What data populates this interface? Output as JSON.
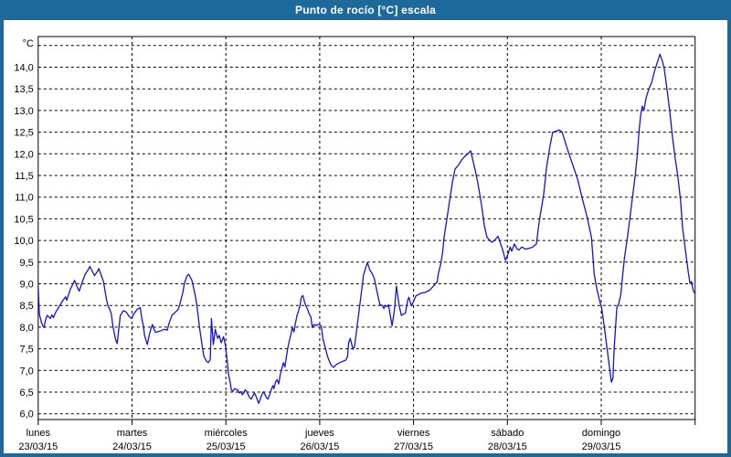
{
  "window": {
    "title": "Punto de rocío [°C] escala"
  },
  "colors": {
    "title_bar": "#1e699b",
    "frame": "#1e699b",
    "line": "#1414cc",
    "grid": "#000000",
    "background": "#ffffff",
    "text": "#000000"
  },
  "chart_data": {
    "type": "line",
    "title": "Punto de rocío [°C] escala",
    "ylabel": "°C",
    "unit_label": "°C",
    "grid": "dashed",
    "legend": "none",
    "y_axis": {
      "min": 6.0,
      "max": 14.5,
      "tick_step": 0.5,
      "labeled_max": 14.0,
      "decimal_separator": ","
    },
    "x_axis": {
      "hours_total": 168,
      "days": [
        {
          "name": "lunes",
          "date": "23/03/15"
        },
        {
          "name": "martes",
          "date": "24/03/15"
        },
        {
          "name": "miércoles",
          "date": "25/03/15"
        },
        {
          "name": "jueves",
          "date": "26/03/15"
        },
        {
          "name": "viernes",
          "date": "27/03/15"
        },
        {
          "name": "sábado",
          "date": "28/03/15"
        },
        {
          "name": "domingo",
          "date": "29/03/15"
        }
      ]
    },
    "series_name": "Punto de rocío",
    "points": [
      [
        0,
        8.92
      ],
      [
        0.3,
        8.3
      ],
      [
        0.8,
        8.12
      ],
      [
        1.2,
        8.03
      ],
      [
        1.5,
        7.99
      ],
      [
        1.9,
        8.17
      ],
      [
        2.3,
        8.27
      ],
      [
        2.7,
        8.24
      ],
      [
        3.1,
        8.2
      ],
      [
        3.5,
        8.28
      ],
      [
        3.9,
        8.22
      ],
      [
        4.5,
        8.35
      ],
      [
        5.4,
        8.48
      ],
      [
        6.2,
        8.6
      ],
      [
        7.0,
        8.7
      ],
      [
        7.3,
        8.62
      ],
      [
        8.2,
        8.87
      ],
      [
        8.9,
        9.0
      ],
      [
        9.3,
        9.08
      ],
      [
        10.1,
        8.9
      ],
      [
        10.5,
        8.83
      ],
      [
        11.3,
        9.05
      ],
      [
        12.0,
        9.22
      ],
      [
        12.8,
        9.33
      ],
      [
        13.2,
        9.4
      ],
      [
        14.0,
        9.26
      ],
      [
        14.4,
        9.19
      ],
      [
        15.2,
        9.29
      ],
      [
        15.5,
        9.35
      ],
      [
        16.3,
        9.15
      ],
      [
        16.7,
        9.05
      ],
      [
        17.1,
        8.83
      ],
      [
        17.5,
        8.62
      ],
      [
        17.9,
        8.48
      ],
      [
        18.3,
        8.41
      ],
      [
        18.7,
        8.31
      ],
      [
        19.1,
        8.03
      ],
      [
        19.8,
        7.71
      ],
      [
        20.2,
        7.62
      ],
      [
        21.0,
        8.27
      ],
      [
        21.8,
        8.38
      ],
      [
        22.5,
        8.35
      ],
      [
        23.3,
        8.24
      ],
      [
        23.9,
        8.2
      ],
      [
        24.5,
        8.31
      ],
      [
        25.3,
        8.41
      ],
      [
        26.1,
        8.45
      ],
      [
        26.5,
        8.2
      ],
      [
        26.9,
        8.03
      ],
      [
        27.2,
        7.81
      ],
      [
        27.9,
        7.6
      ],
      [
        28.4,
        7.81
      ],
      [
        28.8,
        7.95
      ],
      [
        29.2,
        8.06
      ],
      [
        29.6,
        7.95
      ],
      [
        30.0,
        7.88
      ],
      [
        31.1,
        7.91
      ],
      [
        32.3,
        7.95
      ],
      [
        33.0,
        7.93
      ],
      [
        33.5,
        8.1
      ],
      [
        34.2,
        8.27
      ],
      [
        35.0,
        8.34
      ],
      [
        35.8,
        8.41
      ],
      [
        36.2,
        8.52
      ],
      [
        36.6,
        8.66
      ],
      [
        37.0,
        8.8
      ],
      [
        37.4,
        9.01
      ],
      [
        38.1,
        9.19
      ],
      [
        38.5,
        9.22
      ],
      [
        39.3,
        9.08
      ],
      [
        40.1,
        8.76
      ],
      [
        40.5,
        8.55
      ],
      [
        40.9,
        8.27
      ],
      [
        41.2,
        8.03
      ],
      [
        41.6,
        7.78
      ],
      [
        42.0,
        7.53
      ],
      [
        42.4,
        7.32
      ],
      [
        43.0,
        7.22
      ],
      [
        43.5,
        7.18
      ],
      [
        44.0,
        7.25
      ],
      [
        44.3,
        8.2
      ],
      [
        44.8,
        7.6
      ],
      [
        45.3,
        7.95
      ],
      [
        45.9,
        7.74
      ],
      [
        46.3,
        7.81
      ],
      [
        46.8,
        7.64
      ],
      [
        47.4,
        7.78
      ],
      [
        47.9,
        7.57
      ],
      [
        48.3,
        7.25
      ],
      [
        48.7,
        6.9
      ],
      [
        49.1,
        6.73
      ],
      [
        49.4,
        6.55
      ],
      [
        49.8,
        6.52
      ],
      [
        50.2,
        6.58
      ],
      [
        51.0,
        6.55
      ],
      [
        51.4,
        6.48
      ],
      [
        51.8,
        6.51
      ],
      [
        52.2,
        6.44
      ],
      [
        52.6,
        6.48
      ],
      [
        52.9,
        6.55
      ],
      [
        53.3,
        6.52
      ],
      [
        53.7,
        6.44
      ],
      [
        54.1,
        6.37
      ],
      [
        54.5,
        6.34
      ],
      [
        54.9,
        6.41
      ],
      [
        55.3,
        6.48
      ],
      [
        55.7,
        6.41
      ],
      [
        56.1,
        6.31
      ],
      [
        56.4,
        6.24
      ],
      [
        56.8,
        6.34
      ],
      [
        57.2,
        6.44
      ],
      [
        57.6,
        6.51
      ],
      [
        58.0,
        6.44
      ],
      [
        58.4,
        6.37
      ],
      [
        58.8,
        6.34
      ],
      [
        59.2,
        6.44
      ],
      [
        59.6,
        6.55
      ],
      [
        60.0,
        6.65
      ],
      [
        60.3,
        6.58
      ],
      [
        60.7,
        6.73
      ],
      [
        61.1,
        6.79
      ],
      [
        61.5,
        6.69
      ],
      [
        61.9,
        6.9
      ],
      [
        62.3,
        7.04
      ],
      [
        62.7,
        7.18
      ],
      [
        63.1,
        7.08
      ],
      [
        63.5,
        7.32
      ],
      [
        63.8,
        7.5
      ],
      [
        64.2,
        7.67
      ],
      [
        64.6,
        7.81
      ],
      [
        65.0,
        7.99
      ],
      [
        65.4,
        7.89
      ],
      [
        65.8,
        8.1
      ],
      [
        66.2,
        8.27
      ],
      [
        66.6,
        8.38
      ],
      [
        67.0,
        8.52
      ],
      [
        67.3,
        8.69
      ],
      [
        67.7,
        8.73
      ],
      [
        68.1,
        8.59
      ],
      [
        68.5,
        8.48
      ],
      [
        68.9,
        8.41
      ],
      [
        69.3,
        8.31
      ],
      [
        69.7,
        8.24
      ],
      [
        70.1,
        7.99
      ],
      [
        70.5,
        8.06
      ],
      [
        71.0,
        8.04
      ],
      [
        71.7,
        8.06
      ],
      [
        72.0,
        8.05
      ],
      [
        72.4,
        8.03
      ],
      [
        72.8,
        7.74
      ],
      [
        73.4,
        7.53
      ],
      [
        74.0,
        7.32
      ],
      [
        74.8,
        7.14
      ],
      [
        75.5,
        7.07
      ],
      [
        76.3,
        7.14
      ],
      [
        77.1,
        7.18
      ],
      [
        77.9,
        7.21
      ],
      [
        78.7,
        7.24
      ],
      [
        79.1,
        7.32
      ],
      [
        79.4,
        7.64
      ],
      [
        79.8,
        7.74
      ],
      [
        80.5,
        7.49
      ],
      [
        80.9,
        7.55
      ],
      [
        81.4,
        7.9
      ],
      [
        82.1,
        8.4
      ],
      [
        82.8,
        8.9
      ],
      [
        83.2,
        9.2
      ],
      [
        84.0,
        9.45
      ],
      [
        84.2,
        9.49
      ],
      [
        84.9,
        9.3
      ],
      [
        85.3,
        9.26
      ],
      [
        86.0,
        9.11
      ],
      [
        86.7,
        8.8
      ],
      [
        87.4,
        8.52
      ],
      [
        88.0,
        8.5
      ],
      [
        88.4,
        8.43
      ],
      [
        88.8,
        8.5
      ],
      [
        89.3,
        8.47
      ],
      [
        89.6,
        8.52
      ],
      [
        90.1,
        8.24
      ],
      [
        90.5,
        8.03
      ],
      [
        91.1,
        8.38
      ],
      [
        91.6,
        8.95
      ],
      [
        92.3,
        8.5
      ],
      [
        92.9,
        8.27
      ],
      [
        93.4,
        8.3
      ],
      [
        93.9,
        8.32
      ],
      [
        94.5,
        8.62
      ],
      [
        94.8,
        8.69
      ],
      [
        95.4,
        8.5
      ],
      [
        95.8,
        8.55
      ],
      [
        96.6,
        8.72
      ],
      [
        97.8,
        8.78
      ],
      [
        98.9,
        8.8
      ],
      [
        100.1,
        8.85
      ],
      [
        101.3,
        8.97
      ],
      [
        102.0,
        9.04
      ],
      [
        102.4,
        9.26
      ],
      [
        102.9,
        9.43
      ],
      [
        103.4,
        9.71
      ],
      [
        103.8,
        10.07
      ],
      [
        104.5,
        10.49
      ],
      [
        105.2,
        10.91
      ],
      [
        105.9,
        11.33
      ],
      [
        106.6,
        11.65
      ],
      [
        107.6,
        11.75
      ],
      [
        108.3,
        11.86
      ],
      [
        109.2,
        11.95
      ],
      [
        110.1,
        12.02
      ],
      [
        110.6,
        12.07
      ],
      [
        111.8,
        11.61
      ],
      [
        112.5,
        11.3
      ],
      [
        113.4,
        10.8
      ],
      [
        114.1,
        10.34
      ],
      [
        114.8,
        10.07
      ],
      [
        116.0,
        9.96
      ],
      [
        116.7,
        10.0
      ],
      [
        117.6,
        10.1
      ],
      [
        118.8,
        9.78
      ],
      [
        119.5,
        9.54
      ],
      [
        120.2,
        9.7
      ],
      [
        120.7,
        9.85
      ],
      [
        121.1,
        9.75
      ],
      [
        121.8,
        9.92
      ],
      [
        122.5,
        9.8
      ],
      [
        123.0,
        9.78
      ],
      [
        123.7,
        9.85
      ],
      [
        124.6,
        9.8
      ],
      [
        125.6,
        9.82
      ],
      [
        126.5,
        9.85
      ],
      [
        127.4,
        9.92
      ],
      [
        128.1,
        10.42
      ],
      [
        129.3,
        11.08
      ],
      [
        130.0,
        11.68
      ],
      [
        130.9,
        12.18
      ],
      [
        131.6,
        12.5
      ],
      [
        132.3,
        12.52
      ],
      [
        133.3,
        12.55
      ],
      [
        134.0,
        12.5
      ],
      [
        135.1,
        12.18
      ],
      [
        136.8,
        11.72
      ],
      [
        138.0,
        11.4
      ],
      [
        139.1,
        10.99
      ],
      [
        140.3,
        10.57
      ],
      [
        141.5,
        10.07
      ],
      [
        142.2,
        9.22
      ],
      [
        142.9,
        8.87
      ],
      [
        143.6,
        8.6
      ],
      [
        144.1,
        8.45
      ],
      [
        144.8,
        8.0
      ],
      [
        145.5,
        7.5
      ],
      [
        146.2,
        7.0
      ],
      [
        146.6,
        6.73
      ],
      [
        147.0,
        6.82
      ],
      [
        147.3,
        7.5
      ],
      [
        148.0,
        8.45
      ],
      [
        148.5,
        8.55
      ],
      [
        149.0,
        8.75
      ],
      [
        149.9,
        9.57
      ],
      [
        150.6,
        10.0
      ],
      [
        151.3,
        10.49
      ],
      [
        152.0,
        11.0
      ],
      [
        152.7,
        11.5
      ],
      [
        153.2,
        11.96
      ],
      [
        153.7,
        12.55
      ],
      [
        154.1,
        12.9
      ],
      [
        154.5,
        13.1
      ],
      [
        154.9,
        13.0
      ],
      [
        155.5,
        13.3
      ],
      [
        156.2,
        13.5
      ],
      [
        156.9,
        13.65
      ],
      [
        157.6,
        13.9
      ],
      [
        158.3,
        14.1
      ],
      [
        159.0,
        14.3
      ],
      [
        159.6,
        14.15
      ],
      [
        160.1,
        13.97
      ],
      [
        160.8,
        13.5
      ],
      [
        161.5,
        13.0
      ],
      [
        162.2,
        12.4
      ],
      [
        162.9,
        11.9
      ],
      [
        163.6,
        11.47
      ],
      [
        164.3,
        10.9
      ],
      [
        164.8,
        10.3
      ],
      [
        165.5,
        9.8
      ],
      [
        166.2,
        9.3
      ],
      [
        166.7,
        9.01
      ],
      [
        167.1,
        9.05
      ],
      [
        167.5,
        8.85
      ],
      [
        168.0,
        8.77
      ]
    ]
  }
}
